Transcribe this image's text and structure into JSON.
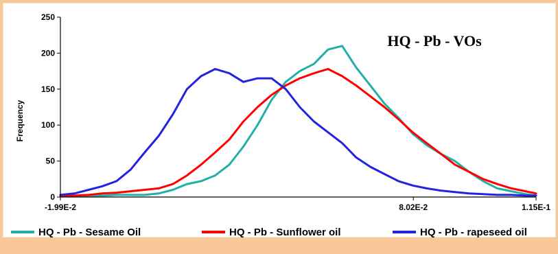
{
  "chart_data": {
    "type": "line",
    "title": "HQ - Pb - VOs",
    "ylabel": "Frequency",
    "xlabel": "",
    "ylim": [
      0,
      250
    ],
    "yticks": [
      0,
      50,
      100,
      150,
      200,
      250
    ],
    "xticks": [
      {
        "x": -0.0199,
        "label": "-1.99E-2"
      },
      {
        "x": 0.0802,
        "label": "8.02E-2"
      },
      {
        "x": 0.115,
        "label": "1.15E-1"
      }
    ],
    "xlim": [
      -0.0199,
      0.115
    ],
    "grid": false,
    "legend_position": "bottom",
    "x": [
      -0.0199,
      -0.0159,
      -0.0119,
      -0.008,
      -0.004,
      0.0,
      0.004,
      0.008,
      0.012,
      0.016,
      0.02,
      0.024,
      0.028,
      0.032,
      0.036,
      0.04,
      0.044,
      0.048,
      0.052,
      0.056,
      0.06,
      0.064,
      0.068,
      0.072,
      0.076,
      0.08,
      0.084,
      0.088,
      0.092,
      0.096,
      0.1,
      0.104,
      0.108,
      0.112,
      0.115
    ],
    "series": [
      {
        "name": "HQ - Pb - Sesame Oil",
        "color": "#22B0A6",
        "values": [
          2,
          1,
          2,
          2,
          3,
          3,
          3,
          5,
          10,
          18,
          22,
          30,
          45,
          70,
          100,
          135,
          160,
          175,
          185,
          205,
          210,
          180,
          155,
          130,
          110,
          88,
          72,
          60,
          50,
          35,
          22,
          12,
          8,
          4,
          2
        ]
      },
      {
        "name": "HQ - Pb - Sunflower oil",
        "color": "#FF0000",
        "values": [
          2,
          2,
          3,
          5,
          6,
          8,
          10,
          12,
          18,
          30,
          45,
          62,
          80,
          105,
          125,
          142,
          155,
          165,
          172,
          178,
          168,
          155,
          140,
          125,
          108,
          90,
          75,
          60,
          45,
          35,
          25,
          18,
          12,
          8,
          5
        ]
      },
      {
        "name": "HQ - Pb - rapeseed oil",
        "color": "#2222E0",
        "values": [
          3,
          5,
          10,
          15,
          22,
          38,
          62,
          85,
          115,
          150,
          168,
          178,
          172,
          160,
          165,
          165,
          150,
          125,
          105,
          90,
          75,
          55,
          42,
          32,
          22,
          16,
          12,
          9,
          7,
          5,
          4,
          3,
          3,
          2,
          2
        ]
      }
    ]
  }
}
